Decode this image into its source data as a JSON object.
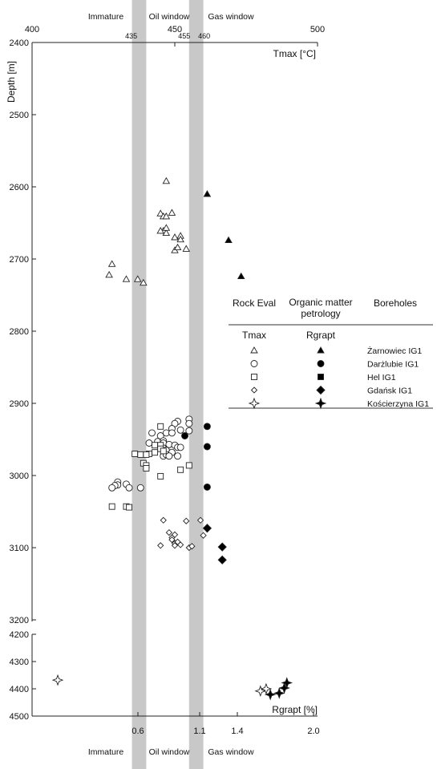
{
  "chart_data": {
    "type": "scatter",
    "y_axis": {
      "label": "Depth [m]",
      "upper_panel": {
        "range": [
          2400,
          3200
        ],
        "ticks": [
          2400,
          2500,
          2600,
          2700,
          2800,
          2900,
          3000,
          3100,
          3200
        ]
      },
      "lower_panel": {
        "range": [
          4200,
          4500
        ],
        "ticks": [
          4200,
          4300,
          4400,
          4500
        ]
      }
    },
    "top_axis": {
      "label": "Tmax [°C]",
      "range": [
        400,
        500
      ],
      "ticks": [
        "400",
        "450",
        "500"
      ],
      "window_ticks": [
        "435",
        "455",
        "460"
      ]
    },
    "bottom_axis": {
      "label": "Rgrapt [%]",
      "ticks": [
        "0.6",
        "1.1",
        "1.4",
        "2.0"
      ]
    },
    "zones": {
      "top": [
        "Immature",
        "Oil window",
        "Gas window"
      ],
      "bottom": [
        "Immature",
        "Oil window",
        "Gas window"
      ]
    },
    "windows_tmax": [
      [
        435,
        440
      ],
      [
        455,
        460
      ]
    ],
    "legend": {
      "headers": [
        "Rock Eval",
        "Organic matter petrology",
        "Boreholes"
      ],
      "subheaders": [
        "Tmax",
        "Rgrapt"
      ],
      "boreholes": [
        "Żarnowiec IG1",
        "Darżlubie IG1",
        "Hel IG1",
        "Gdańsk IG1",
        "Kościerzyna IG1"
      ]
    },
    "series": [
      {
        "name": "Żarnowiec IG1",
        "measure": "Tmax",
        "marker": "triangle-open",
        "points": [
          [
            447,
            2592
          ],
          [
            445,
            2637
          ],
          [
            446,
            2641
          ],
          [
            447,
            2641
          ],
          [
            449,
            2636
          ],
          [
            446,
            2661
          ],
          [
            447,
            2664
          ],
          [
            445,
            2661
          ],
          [
            447,
            2657
          ],
          [
            450,
            2670
          ],
          [
            452,
            2668
          ],
          [
            452,
            2673
          ],
          [
            450,
            2688
          ],
          [
            451,
            2684
          ],
          [
            454,
            2686
          ],
          [
            428,
            2707
          ],
          [
            427,
            2722
          ],
          [
            433,
            2728
          ],
          [
            437,
            2728
          ],
          [
            439,
            2733
          ]
        ]
      },
      {
        "name": "Żarnowiec IG1",
        "measure": "Rgrapt",
        "marker": "triangle-filled",
        "points": [
          [
            1.16,
            2610
          ],
          [
            1.33,
            2674
          ],
          [
            1.43,
            2724
          ]
        ]
      },
      {
        "name": "Darżlubie IG1",
        "measure": "Tmax",
        "marker": "circle-open",
        "points": [
          [
            455,
            2922
          ],
          [
            455,
            2928
          ],
          [
            451,
            2925
          ],
          [
            450,
            2928
          ],
          [
            449,
            2935
          ],
          [
            452,
            2937
          ],
          [
            455,
            2938
          ],
          [
            447,
            2941
          ],
          [
            449,
            2941
          ],
          [
            442,
            2941
          ],
          [
            445,
            2945
          ],
          [
            444,
            2953
          ],
          [
            446,
            2952
          ],
          [
            441,
            2955
          ],
          [
            446,
            2955
          ],
          [
            448,
            2957
          ],
          [
            450,
            2958
          ],
          [
            446,
            2962
          ],
          [
            447,
            2965
          ],
          [
            451,
            2961
          ],
          [
            452,
            2961
          ],
          [
            449,
            2968
          ],
          [
            446,
            2973
          ],
          [
            447,
            2971
          ],
          [
            448,
            2973
          ],
          [
            451,
            2973
          ],
          [
            430,
            3009
          ],
          [
            430,
            3013
          ],
          [
            429,
            3014
          ],
          [
            428,
            3017
          ],
          [
            433,
            3012
          ],
          [
            434,
            3017
          ],
          [
            438,
            3017
          ]
        ]
      },
      {
        "name": "Darżlubie IG1",
        "measure": "Rgrapt",
        "marker": "circle-filled",
        "points": [
          [
            0.98,
            2945
          ],
          [
            1.16,
            2932
          ],
          [
            1.16,
            2960
          ],
          [
            1.16,
            3016
          ]
        ]
      },
      {
        "name": "Hel IG1",
        "measure": "Tmax",
        "marker": "square-open",
        "points": [
          [
            445,
            2932
          ],
          [
            443,
            2958
          ],
          [
            445,
            2958
          ],
          [
            445,
            2963
          ],
          [
            446,
            2966
          ],
          [
            443,
            2968
          ],
          [
            441,
            2970
          ],
          [
            436,
            2970
          ],
          [
            438,
            2971
          ],
          [
            440,
            2971
          ],
          [
            439,
            2983
          ],
          [
            440,
            2986
          ],
          [
            440,
            2990
          ],
          [
            445,
            3001
          ],
          [
            452,
            2992
          ],
          [
            455,
            2986
          ],
          [
            428,
            3043
          ],
          [
            433,
            3043
          ],
          [
            434,
            3044
          ]
        ]
      },
      {
        "name": "Gdańsk IG1",
        "measure": "Tmax",
        "marker": "diamond-open",
        "points": [
          [
            446,
            3062
          ],
          [
            459,
            3062
          ],
          [
            454,
            3063
          ],
          [
            448,
            3079
          ],
          [
            450,
            3082
          ],
          [
            449,
            3086
          ],
          [
            449,
            3089
          ],
          [
            450,
            3094
          ],
          [
            451,
            3092
          ],
          [
            452,
            3096
          ],
          [
            445,
            3097
          ],
          [
            450,
            3097
          ],
          [
            455,
            3100
          ],
          [
            456,
            3098
          ],
          [
            460,
            3083
          ]
        ]
      },
      {
        "name": "Gdańsk IG1",
        "measure": "Rgrapt",
        "marker": "diamond-filled",
        "points": [
          [
            1.16,
            3073
          ],
          [
            1.28,
            3099
          ],
          [
            1.28,
            3117
          ]
        ]
      },
      {
        "name": "Kościerzyna IG1",
        "measure": "Tmax",
        "marker": "star-open",
        "points": [
          [
            409,
            4368
          ],
          [
            480,
            4408
          ],
          [
            482,
            4400
          ]
        ]
      },
      {
        "name": "Kościerzyna IG1",
        "measure": "Rgrapt",
        "marker": "star-filled",
        "points": [
          [
            1.66,
            4421
          ],
          [
            1.73,
            4416
          ],
          [
            1.77,
            4397
          ],
          [
            1.79,
            4378
          ]
        ]
      }
    ]
  }
}
